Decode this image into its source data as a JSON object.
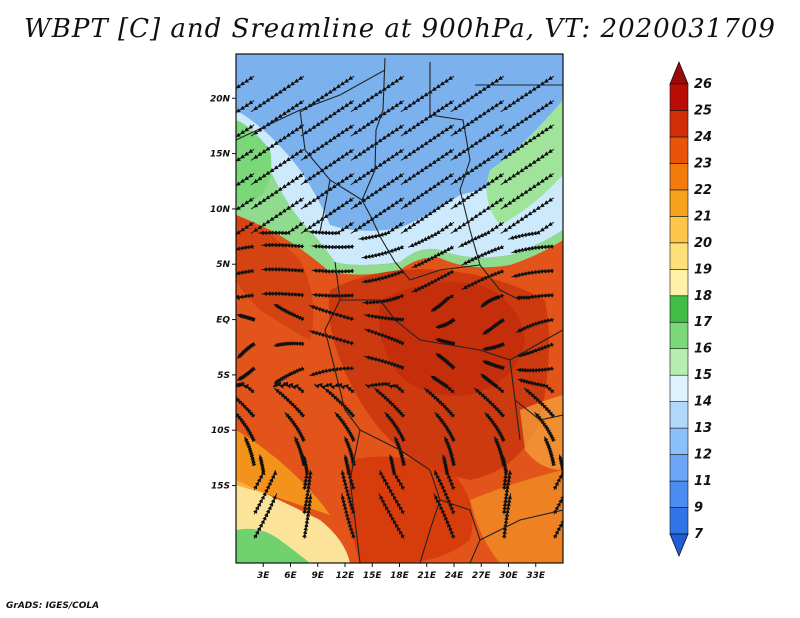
{
  "title": "WBPT [C] and Sreamline at 900hPa, VT: 2020031709",
  "footer": "GrADS: IGES/COLA",
  "map": {
    "lat_range": [
      -22,
      24
    ],
    "lon_range": [
      0,
      36
    ],
    "lat_ticks": [
      {
        "value": 20,
        "label": "20N"
      },
      {
        "value": 15,
        "label": "15N"
      },
      {
        "value": 10,
        "label": "10N"
      },
      {
        "value": 5,
        "label": "5N"
      },
      {
        "value": 0,
        "label": "EQ"
      },
      {
        "value": -5,
        "label": "5S"
      },
      {
        "value": -10,
        "label": "10S"
      },
      {
        "value": -15,
        "label": "15S"
      }
    ],
    "lon_ticks": [
      {
        "value": 3,
        "label": "3E"
      },
      {
        "value": 6,
        "label": "6E"
      },
      {
        "value": 9,
        "label": "9E"
      },
      {
        "value": 12,
        "label": "12E"
      },
      {
        "value": 15,
        "label": "15E"
      },
      {
        "value": 18,
        "label": "18E"
      },
      {
        "value": 21,
        "label": "21E"
      },
      {
        "value": 24,
        "label": "24E"
      },
      {
        "value": 27,
        "label": "27E"
      },
      {
        "value": 30,
        "label": "30E"
      },
      {
        "value": 33,
        "label": "33E"
      }
    ]
  },
  "colorbar": {
    "levels": [
      "7",
      "9",
      "11",
      "12",
      "13",
      "14",
      "15",
      "16",
      "17",
      "18",
      "19",
      "20",
      "21",
      "22",
      "23",
      "24",
      "25",
      "26"
    ],
    "colors": [
      "#1e5ed8",
      "#2f75e8",
      "#4a8cf0",
      "#6aa6f5",
      "#8cc0f8",
      "#b0d8fb",
      "#dff2ff",
      "#b6eeb2",
      "#7ad879",
      "#3fbd45",
      "#fff2a8",
      "#fde07a",
      "#fbc64a",
      "#f7a21d",
      "#f27b0c",
      "#e8550a",
      "#d22f08",
      "#b80e06",
      "#9a0a06"
    ]
  },
  "colors": {
    "blue": "#79b4f2",
    "light_blue": "#cdeafc",
    "green": "#88dd88",
    "yellow": "#fbe49a",
    "orange": "#ed6a1c",
    "red": "#d33a10",
    "dark_red": "#b51d08"
  }
}
